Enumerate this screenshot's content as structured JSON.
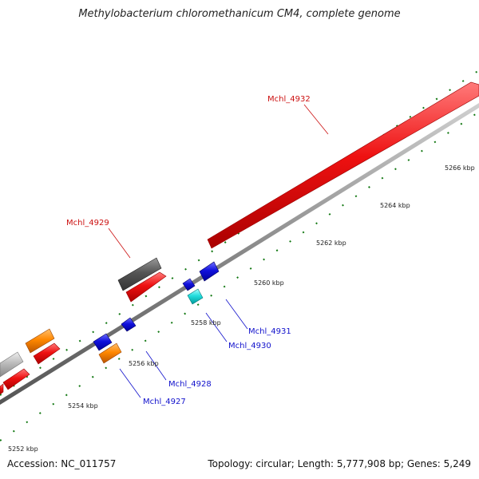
{
  "title": "Methylobacterium chloromethanicum CM4, complete genome",
  "footer": {
    "accession": "Accession: NC_011757",
    "summary": "Topology: circular; Length: 5,777,908 bp; Genes: 5,249"
  },
  "colors": {
    "forward_cds": "#ee1111",
    "reverse_cds": "#1111dd",
    "highlight": "#22dddd",
    "orange": "#ff8800",
    "dark_gray": "#555555",
    "light_gray": "#bbbbbb",
    "backbone": "#888888",
    "tick": "#117711"
  },
  "tick_labels": [
    "5252 kbp",
    "5254 kbp",
    "5256 kbp",
    "5258 kbp",
    "5260 kbp",
    "5262 kbp",
    "5264 kbp",
    "5266 kbp"
  ],
  "gene_labels": [
    {
      "name": "Mchl_4932",
      "color": "#cc1111"
    },
    {
      "name": "Mchl_4929",
      "color": "#cc1111"
    },
    {
      "name": "Mchl_4931",
      "color": "#1111cc"
    },
    {
      "name": "Mchl_4930",
      "color": "#1111cc"
    },
    {
      "name": "Mchl_4928",
      "color": "#1111cc"
    },
    {
      "name": "Mchl_4927",
      "color": "#1111cc"
    }
  ]
}
